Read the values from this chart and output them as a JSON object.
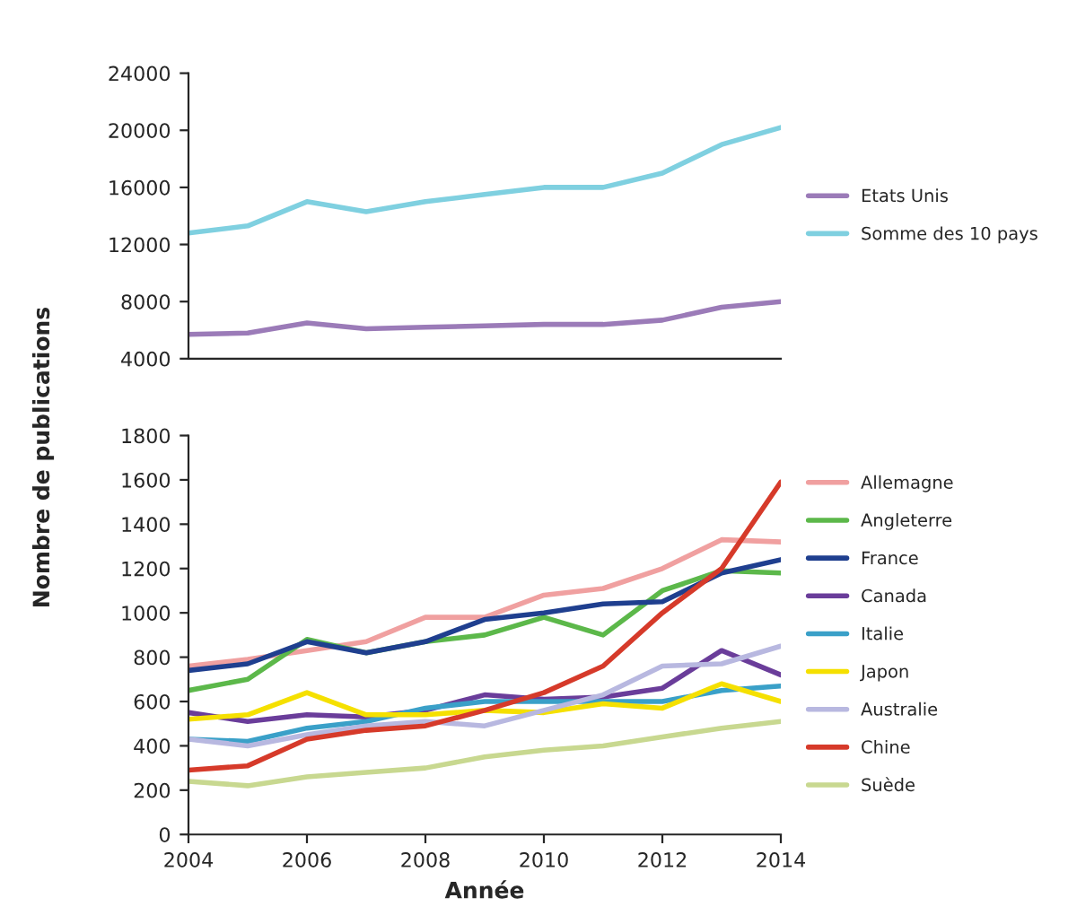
{
  "chart_data": [
    {
      "type": "line",
      "x": [
        2004,
        2005,
        2006,
        2007,
        2008,
        2009,
        2010,
        2011,
        2012,
        2013,
        2014
      ],
      "xlim": [
        2004,
        2014
      ],
      "ylim": [
        4000,
        24000
      ],
      "yticks": [
        4000,
        8000,
        12000,
        16000,
        20000,
        24000
      ],
      "tick_labels": "y",
      "grid": false,
      "legend": "right",
      "marker": "none",
      "line_style": "solid",
      "series": [
        {
          "name": "Etats Unis",
          "color": "#9b7bb8",
          "values": [
            5700,
            5800,
            6500,
            6100,
            6200,
            6300,
            6400,
            6400,
            6700,
            7600,
            8000
          ]
        },
        {
          "name": "Somme des 10 pays",
          "color": "#7fd0e0",
          "values": [
            12800,
            13300,
            15000,
            14300,
            15000,
            15500,
            16000,
            16000,
            17000,
            19000,
            20200
          ]
        }
      ]
    },
    {
      "type": "line",
      "x": [
        2004,
        2005,
        2006,
        2007,
        2008,
        2009,
        2010,
        2011,
        2012,
        2013,
        2014
      ],
      "xlim": [
        2004,
        2014
      ],
      "xticks": [
        2004,
        2006,
        2008,
        2010,
        2012,
        2014
      ],
      "ylim": [
        0,
        1800
      ],
      "yticks": [
        0,
        200,
        400,
        600,
        800,
        1000,
        1200,
        1400,
        1600,
        1800
      ],
      "xlabel": "Année",
      "ylabel": "Nombre de publications",
      "grid": false,
      "legend": "right",
      "marker": "none",
      "line_style": "solid",
      "series": [
        {
          "name": "Allemagne",
          "color": "#f0a0a0",
          "values": [
            760,
            790,
            830,
            870,
            980,
            980,
            1080,
            1110,
            1200,
            1330,
            1320
          ]
        },
        {
          "name": "Angleterre",
          "color": "#5cb84a",
          "values": [
            650,
            700,
            880,
            820,
            870,
            900,
            980,
            900,
            1100,
            1190,
            1180
          ]
        },
        {
          "name": "France",
          "color": "#1f3f8f",
          "values": [
            740,
            770,
            870,
            820,
            870,
            970,
            1000,
            1040,
            1050,
            1180,
            1240
          ]
        },
        {
          "name": "Canada",
          "color": "#6a3d9a",
          "values": [
            550,
            510,
            540,
            530,
            560,
            630,
            610,
            620,
            660,
            830,
            720
          ]
        },
        {
          "name": "Italie",
          "color": "#3aa0c8",
          "values": [
            430,
            420,
            480,
            510,
            570,
            600,
            600,
            600,
            600,
            650,
            670
          ]
        },
        {
          "name": "Japon",
          "color": "#f5e000",
          "values": [
            520,
            540,
            640,
            540,
            540,
            560,
            550,
            590,
            570,
            680,
            600
          ]
        },
        {
          "name": "Australie",
          "color": "#b8b8e0",
          "values": [
            430,
            400,
            450,
            490,
            510,
            490,
            560,
            630,
            760,
            770,
            850
          ]
        },
        {
          "name": "Chine",
          "color": "#d63a2a",
          "values": [
            290,
            310,
            430,
            470,
            490,
            560,
            640,
            760,
            1000,
            1200,
            1590
          ]
        },
        {
          "name": "Suède",
          "color": "#c8d890",
          "values": [
            240,
            220,
            260,
            280,
            300,
            350,
            380,
            400,
            440,
            480,
            510
          ]
        }
      ]
    }
  ]
}
